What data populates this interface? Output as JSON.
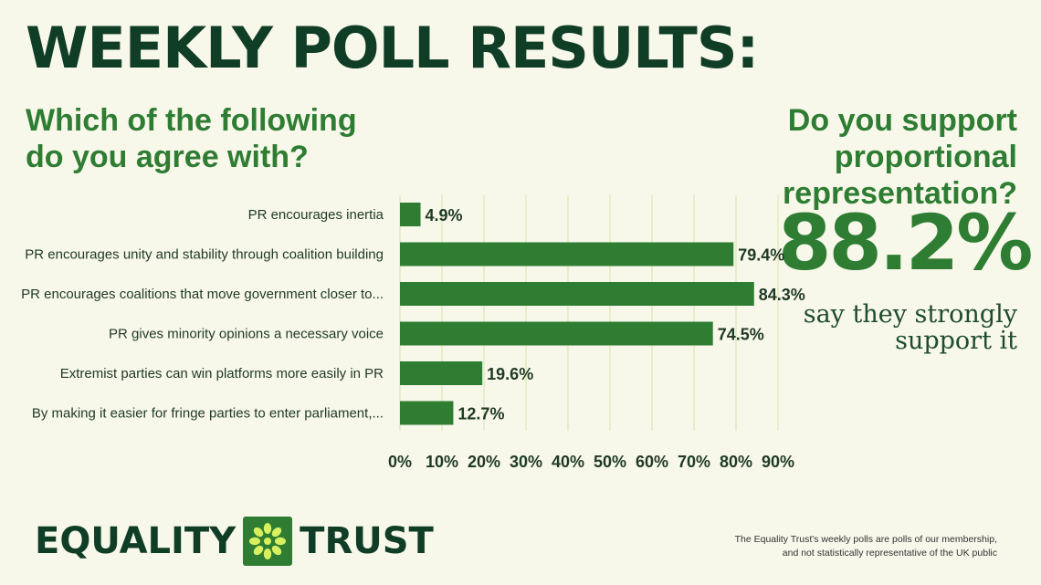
{
  "header": {
    "title": "WEEKLY POLL RESULTS:",
    "question_left_line1": "Which of the following",
    "question_left_line2": "do you agree with?",
    "question_right_line1": "Do you support proportional",
    "question_right_line2": "representation?"
  },
  "highlight": {
    "value": "88.2%",
    "caption_line1": "say they strongly",
    "caption_line2": "support it"
  },
  "chart_data": {
    "type": "bar",
    "orientation": "horizontal",
    "categories": [
      "PR encourages inertia",
      "PR encourages unity and stability through coalition building",
      "PR encourages coalitions that move government closer to...",
      "PR gives minority opinions a necessary voice",
      "Extremist parties can win platforms more easily in PR",
      "By making it easier for fringe parties to enter parliament,..."
    ],
    "values": [
      4.9,
      79.4,
      84.3,
      74.5,
      19.6,
      12.7
    ],
    "value_labels": [
      "4.9%",
      "79.4%",
      "84.3%",
      "74.5%",
      "19.6%",
      "12.7%"
    ],
    "xlim": [
      0,
      90
    ],
    "x_ticks": [
      "0%",
      "10%",
      "20%",
      "30%",
      "40%",
      "50%",
      "60%",
      "70%",
      "80%",
      "90%"
    ],
    "grid": true,
    "bar_color": "#2e7d32",
    "grid_color": "#d6e6a8"
  },
  "branding": {
    "logo_word_1": "EQUALITY",
    "logo_word_2": "TRUST",
    "logo_icon": "asterisk-flower-icon"
  },
  "footnote": {
    "line1": "The Equality Trust's weekly polls are polls of our membership,",
    "line2": "and not statistically representative of the UK public"
  },
  "colors": {
    "background": "#f7f7ea",
    "title": "#0f3d26",
    "accent": "#2e7d32"
  }
}
